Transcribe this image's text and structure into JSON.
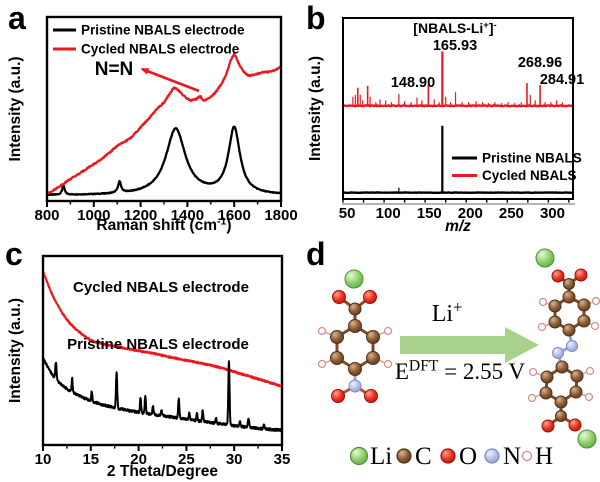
{
  "figure": {
    "background": "#ffffff",
    "accent_red": "#e8191f",
    "panels": [
      {
        "label": "a"
      },
      {
        "label": "b"
      },
      {
        "label": "c"
      },
      {
        "label": "d"
      }
    ]
  },
  "chart_data": [
    {
      "id": "raman",
      "panel": "a",
      "type": "line",
      "title": "",
      "xlabel": {
        "pre": "Raman shift (cm",
        "sup": "-1",
        "post": ")"
      },
      "ylabel": "Intensity (a.u.)",
      "xlim": [
        800,
        1800
      ],
      "xticks": [
        800,
        1000,
        1200,
        1400,
        1600,
        1800
      ],
      "xminor": 100,
      "grid": false,
      "legend_position": "top-left-inside",
      "legend": [
        {
          "label": "Pristine NBALS electrode",
          "color": "#000000"
        },
        {
          "label": "Cycled NBALS electrode",
          "color": "#e8191f"
        }
      ],
      "series": [
        {
          "name": "Pristine NBALS electrode",
          "color": "#000000",
          "model": "peaks",
          "peak_shape": "lorentzian",
          "baseline": 0.03,
          "noise": 0.004,
          "peaks": [
            [
              870,
              0.05,
              6
            ],
            [
              1110,
              0.06,
              8
            ],
            [
              1350,
              0.36,
              50
            ],
            [
              1600,
              0.36,
              30
            ]
          ]
        },
        {
          "name": "Cycled NBALS electrode",
          "color": "#e8191f",
          "model": "points",
          "noise": 0.007,
          "points": [
            [
              800,
              0.04
            ],
            [
              830,
              0.06
            ],
            [
              860,
              0.085
            ],
            [
              900,
              0.12
            ],
            [
              940,
              0.15
            ],
            [
              980,
              0.185
            ],
            [
              1020,
              0.215
            ],
            [
              1060,
              0.255
            ],
            [
              1100,
              0.3
            ],
            [
              1130,
              0.32
            ],
            [
              1160,
              0.345
            ],
            [
              1200,
              0.4
            ],
            [
              1240,
              0.455
            ],
            [
              1270,
              0.5
            ],
            [
              1300,
              0.535
            ],
            [
              1320,
              0.575
            ],
            [
              1340,
              0.615
            ],
            [
              1355,
              0.61
            ],
            [
              1370,
              0.59
            ],
            [
              1390,
              0.565
            ],
            [
              1415,
              0.545
            ],
            [
              1440,
              0.555
            ],
            [
              1455,
              0.57
            ],
            [
              1468,
              0.545
            ],
            [
              1480,
              0.55
            ],
            [
              1500,
              0.565
            ],
            [
              1520,
              0.59
            ],
            [
              1545,
              0.635
            ],
            [
              1565,
              0.685
            ],
            [
              1585,
              0.765
            ],
            [
              1600,
              0.8
            ],
            [
              1610,
              0.775
            ],
            [
              1622,
              0.74
            ],
            [
              1635,
              0.715
            ],
            [
              1650,
              0.69
            ],
            [
              1665,
              0.68
            ],
            [
              1680,
              0.685
            ],
            [
              1700,
              0.69
            ],
            [
              1720,
              0.7
            ],
            [
              1740,
              0.7
            ],
            [
              1760,
              0.705
            ],
            [
              1780,
              0.715
            ],
            [
              1800,
              0.73
            ]
          ]
        }
      ],
      "annotations": [
        {
          "text": "N=N",
          "x": 114,
          "y": 75,
          "size": 19,
          "weight": 700,
          "color": "#000000",
          "anchor": "middle"
        }
      ],
      "arrows": [
        {
          "head_x": 142,
          "head_y": 69,
          "tail_x": 199,
          "tail_y": 91,
          "color": "#e8191f"
        }
      ]
    },
    {
      "id": "mass-spectrum",
      "panel": "b",
      "type": "stick",
      "title": "",
      "xlabel": {
        "pre": "m/z",
        "sup": "",
        "post": ""
      },
      "xlabel_italic": true,
      "ylabel": "Intensity (a.u.)",
      "xlim": [
        45,
        325
      ],
      "xticks": [
        50,
        100,
        150,
        200,
        250,
        300
      ],
      "xminor": 25,
      "grid": false,
      "legend_position": "bottom-right-inside",
      "legend": [
        {
          "label": "Pristine NBALS",
          "color": "#000000"
        },
        {
          "label": "Cycled NBALS",
          "color": "#e8191f"
        }
      ],
      "series": [
        {
          "name": "Cycled NBALS",
          "color": "#e8191f",
          "baseline": 0.515,
          "noise": 0.005,
          "peaks": [
            [
              57,
              0.05
            ],
            [
              60,
              0.06
            ],
            [
              63,
              0.1
            ],
            [
              66,
              0.06
            ],
            [
              69,
              0.03
            ],
            [
              75,
              0.11
            ],
            [
              78,
              0.05
            ],
            [
              85,
              0.02
            ],
            [
              90,
              0.035
            ],
            [
              97,
              0.03
            ],
            [
              104,
              0.02
            ],
            [
              113,
              0.065
            ],
            [
              120,
              0.025
            ],
            [
              128,
              0.02
            ],
            [
              135,
              0.045
            ],
            [
              141,
              0.03
            ],
            [
              148.9,
              0.115
            ],
            [
              156,
              0.035
            ],
            [
              162,
              0.02
            ],
            [
              165.93,
              0.3
            ],
            [
              170,
              0.05
            ],
            [
              176,
              0.02
            ],
            [
              182,
              0.075
            ],
            [
              190,
              0.02
            ],
            [
              198,
              0.02
            ],
            [
              207,
              0.025
            ],
            [
              215,
              0.02
            ],
            [
              222,
              0.015
            ],
            [
              230,
              0.02
            ],
            [
              238,
              0.015
            ],
            [
              246,
              0.02
            ],
            [
              254,
              0.015
            ],
            [
              262,
              0.02
            ],
            [
              268.96,
              0.125
            ],
            [
              273,
              0.06
            ],
            [
              279,
              0.03
            ],
            [
              284.91,
              0.115
            ],
            [
              291,
              0.02
            ],
            [
              298,
              0.02
            ],
            [
              305,
              0.03
            ],
            [
              312,
              0.02
            ]
          ]
        },
        {
          "name": "Pristine NBALS",
          "color": "#000000",
          "baseline": 0.035,
          "noise": 0.002,
          "peaks": [
            [
              75,
              0.006
            ],
            [
              113,
              0.028
            ],
            [
              165.93,
              0.37
            ],
            [
              210,
              0.004
            ]
          ]
        }
      ],
      "annotations": [
        {
          "segments": [
            {
              "t": "[NBALS-Li"
            },
            {
              "t": "+",
              "sup": true
            },
            {
              "t": "]"
            },
            {
              "t": "-",
              "sup": true
            }
          ],
          "x": 155,
          "y": 33,
          "size": 14,
          "weight": 700,
          "color": "#000000",
          "anchor": "middle"
        },
        {
          "text": "165.93",
          "x": 155,
          "y": 50,
          "size": 14.5,
          "weight": 700,
          "color": "#000000",
          "anchor": "middle"
        },
        {
          "text": "148.90",
          "x": 113,
          "y": 87,
          "size": 14.5,
          "weight": 700,
          "color": "#000000",
          "anchor": "middle"
        },
        {
          "text": "268.96",
          "x": 240,
          "y": 67,
          "size": 14.5,
          "weight": 700,
          "color": "#000000",
          "anchor": "middle"
        },
        {
          "text": "284.91",
          "x": 262,
          "y": 84,
          "size": 14.5,
          "weight": 700,
          "color": "#000000",
          "anchor": "middle"
        }
      ],
      "arrows": []
    },
    {
      "id": "xrd",
      "panel": "c",
      "type": "line",
      "title": "",
      "xlabel": {
        "pre": "2 Theta/Degree",
        "sup": "",
        "post": ""
      },
      "ylabel": "Intensity (a.u.)",
      "xlim": [
        10,
        35
      ],
      "xticks": [
        10,
        15,
        20,
        25,
        30,
        35
      ],
      "xminor": 2.5,
      "grid": false,
      "legend_position": "none",
      "legend": [],
      "series": [
        {
          "name": "Cycled NBALS electrode",
          "color": "#e8191f",
          "model": "points",
          "noise": 0.009,
          "points": [
            [
              10,
              0.92
            ],
            [
              10.4,
              0.865
            ],
            [
              10.8,
              0.815
            ],
            [
              11.2,
              0.77
            ],
            [
              11.6,
              0.735
            ],
            [
              12,
              0.7
            ],
            [
              12.4,
              0.67
            ],
            [
              12.8,
              0.645
            ],
            [
              13.2,
              0.625
            ],
            [
              13.6,
              0.605
            ],
            [
              14,
              0.59
            ],
            [
              14.5,
              0.57
            ],
            [
              15,
              0.555
            ],
            [
              15.5,
              0.545
            ],
            [
              16,
              0.538
            ],
            [
              17,
              0.527
            ],
            [
              18,
              0.518
            ],
            [
              19,
              0.508
            ],
            [
              20,
              0.498
            ],
            [
              21,
              0.49
            ],
            [
              22,
              0.48
            ],
            [
              23,
              0.468
            ],
            [
              24,
              0.458
            ],
            [
              25,
              0.448
            ],
            [
              26,
              0.438
            ],
            [
              27,
              0.428
            ],
            [
              28,
              0.417
            ],
            [
              29,
              0.403
            ],
            [
              30,
              0.388
            ],
            [
              31,
              0.372
            ],
            [
              32,
              0.357
            ],
            [
              33,
              0.342
            ],
            [
              34,
              0.326
            ],
            [
              35,
              0.31
            ]
          ]
        },
        {
          "name": "Pristine NBALS electrode",
          "color": "#000000",
          "model": "points+peaks",
          "peak_shape": "gaussian",
          "noise": 0.012,
          "points": [
            [
              10,
              0.46
            ],
            [
              10.4,
              0.42
            ],
            [
              10.8,
              0.385
            ],
            [
              11.2,
              0.357
            ],
            [
              11.6,
              0.335
            ],
            [
              12,
              0.317
            ],
            [
              12.5,
              0.297
            ],
            [
              13,
              0.281
            ],
            [
              13.5,
              0.268
            ],
            [
              14,
              0.255
            ],
            [
              14.5,
              0.244
            ],
            [
              15,
              0.234
            ],
            [
              16,
              0.216
            ],
            [
              17,
              0.203
            ],
            [
              18,
              0.192
            ],
            [
              19,
              0.182
            ],
            [
              20,
              0.173
            ],
            [
              21,
              0.166
            ],
            [
              22,
              0.158
            ],
            [
              23,
              0.151
            ],
            [
              24,
              0.143
            ],
            [
              25,
              0.136
            ],
            [
              26,
              0.129
            ],
            [
              27,
              0.122
            ],
            [
              28,
              0.116
            ],
            [
              29,
              0.109
            ],
            [
              30,
              0.102
            ],
            [
              31,
              0.096
            ],
            [
              32,
              0.091
            ],
            [
              33,
              0.086
            ],
            [
              34,
              0.081
            ],
            [
              35,
              0.078
            ]
          ],
          "peaks": [
            [
              11.35,
              0.09,
              0.09
            ],
            [
              13.05,
              0.07,
              0.08
            ],
            [
              15.1,
              0.05,
              0.08
            ],
            [
              17.7,
              0.19,
              0.09
            ],
            [
              20.2,
              0.08,
              0.08
            ],
            [
              20.7,
              0.095,
              0.08
            ],
            [
              21.5,
              0.045,
              0.08
            ],
            [
              22.4,
              0.03,
              0.08
            ],
            [
              24.2,
              0.1,
              0.09
            ],
            [
              25.3,
              0.035,
              0.08
            ],
            [
              26.1,
              0.04,
              0.08
            ],
            [
              26.7,
              0.055,
              0.09
            ],
            [
              28.1,
              0.025,
              0.08
            ],
            [
              29.45,
              0.333,
              0.09
            ],
            [
              30.6,
              0.03,
              0.08
            ],
            [
              31.5,
              0.045,
              0.1
            ],
            [
              33.1,
              0.02,
              0.09
            ]
          ]
        }
      ],
      "annotations": [
        {
          "text": "Cycled NBALS electrode",
          "x": 161,
          "y": 57,
          "size": 15,
          "weight": 700,
          "color": "#000000",
          "anchor": "middle"
        },
        {
          "text": "Pristine NBALS electrode",
          "x": 158,
          "y": 114,
          "size": 15,
          "weight": 700,
          "color": "#000000",
          "anchor": "middle"
        }
      ],
      "arrows": []
    }
  ],
  "panel_d": {
    "arrow_label": {
      "base": "Li",
      "sup": "+"
    },
    "energy_label": {
      "base": "E",
      "sup": "DFT",
      "rest": " = 2.55 V"
    },
    "arrow_color": "#a9d18e",
    "atom_colors": {
      "Li": "#7cc55a",
      "C": "#8a5a35",
      "O": "#e63322",
      "N": "#b4bee8",
      "H": "#ffffff"
    },
    "legend": [
      {
        "symbol": "Li",
        "type": "Li"
      },
      {
        "symbol": "C",
        "type": "C"
      },
      {
        "symbol": "O",
        "type": "O"
      },
      {
        "symbol": "N",
        "type": "N"
      },
      {
        "symbol": "H",
        "type": "H"
      }
    ]
  }
}
